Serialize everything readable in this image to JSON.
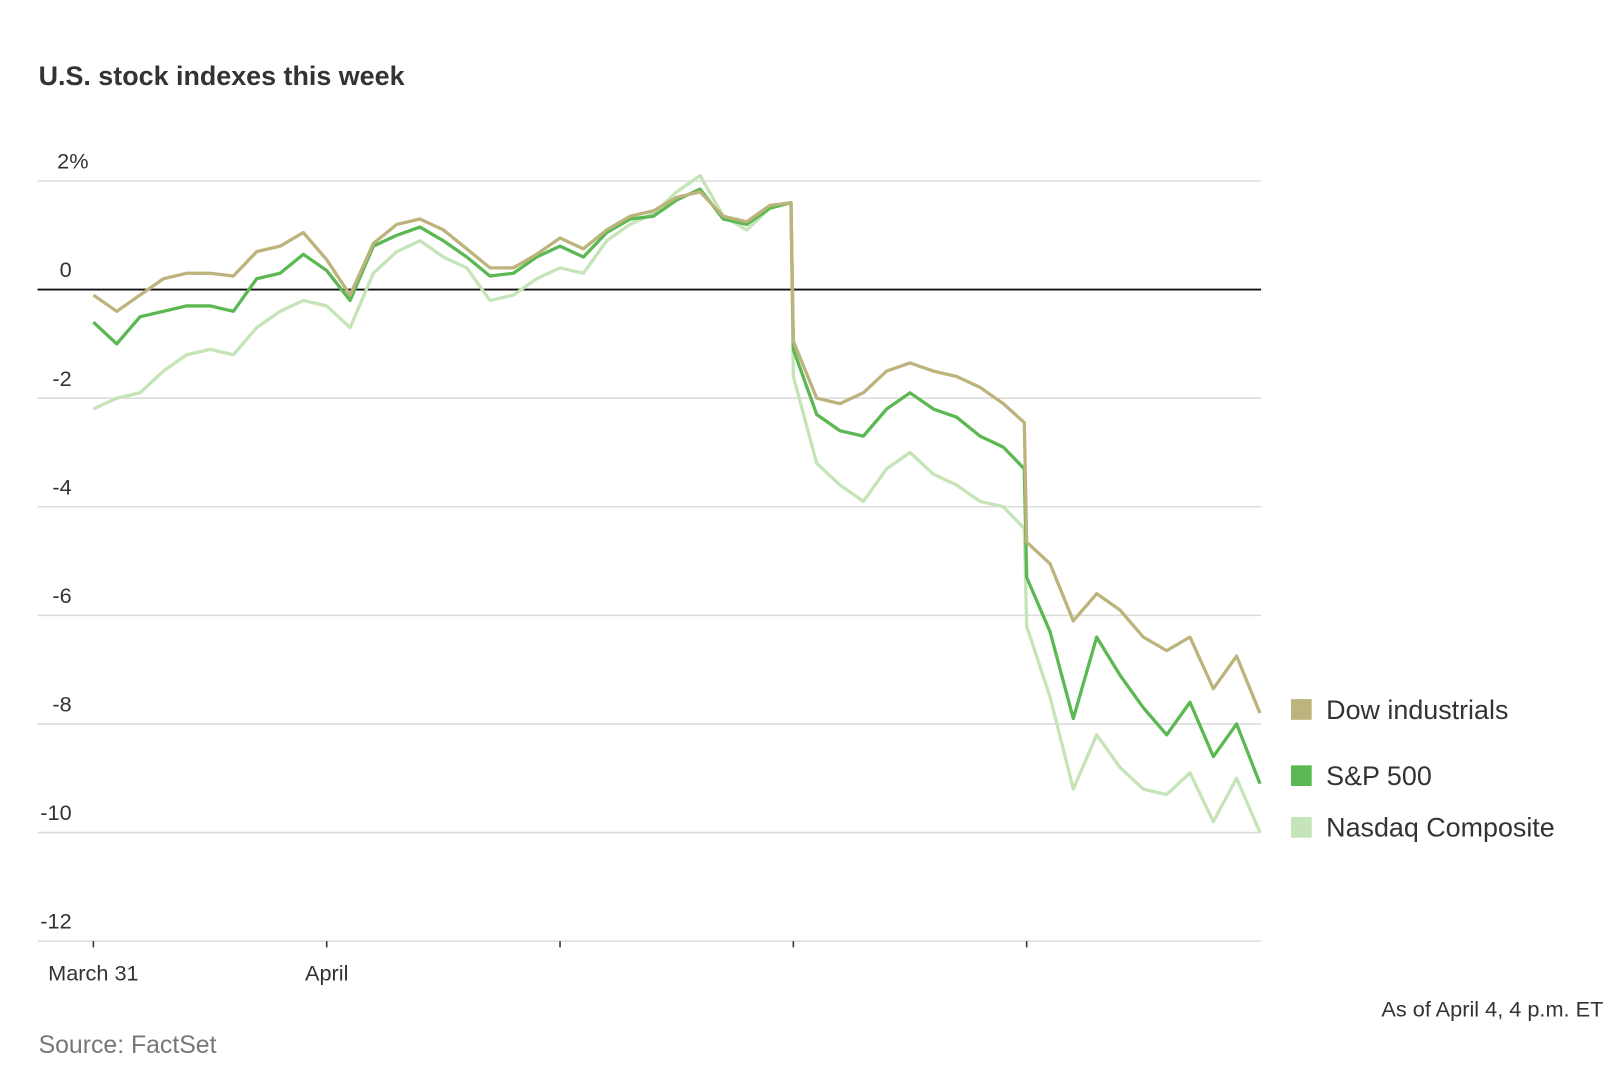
{
  "chart_data": {
    "type": "line",
    "title": "U.S. stock indexes this week",
    "source": "Source: FactSet",
    "footnote": "As of April 4, 4 p.m. ET",
    "x": [
      0,
      0.1,
      0.2,
      0.3,
      0.4,
      0.5,
      0.6,
      0.7,
      0.8,
      0.9,
      1.0,
      1.1,
      1.2,
      1.3,
      1.4,
      1.5,
      1.6,
      1.7,
      1.8,
      1.9,
      2.0,
      2.1,
      2.2,
      2.3,
      2.4,
      2.5,
      2.6,
      2.7,
      2.8,
      2.9,
      2.99,
      3.0,
      3.1,
      3.2,
      3.3,
      3.4,
      3.5,
      3.6,
      3.7,
      3.8,
      3.9,
      3.99,
      4.0,
      4.1,
      4.2,
      4.3,
      4.4,
      4.5,
      4.6,
      4.7,
      4.8,
      4.9,
      5.0
    ],
    "xlim": [
      0,
      5
    ],
    "xticks": [
      0,
      1,
      2,
      3,
      4
    ],
    "xtick_labels": [
      "March 31",
      "April",
      null,
      null,
      null
    ],
    "ylim": [
      -12,
      2
    ],
    "yticks": [
      {
        "value": 2,
        "label": "2%"
      },
      0,
      -2,
      -4,
      -6,
      -8,
      -10,
      -12
    ],
    "grid": true,
    "legend": "right",
    "series": [
      {
        "name": "Dow industrials",
        "color": "#bcb47c",
        "values": [
          -0.1,
          -0.4,
          -0.1,
          0.2,
          0.3,
          0.3,
          0.25,
          0.7,
          0.8,
          1.05,
          0.55,
          -0.1,
          0.85,
          1.2,
          1.3,
          1.1,
          0.75,
          0.4,
          0.4,
          0.65,
          0.95,
          0.75,
          1.1,
          1.35,
          1.45,
          1.7,
          1.8,
          1.35,
          1.25,
          1.55,
          1.6,
          -0.95,
          -2.0,
          -2.1,
          -1.9,
          -1.5,
          -1.35,
          -1.5,
          -1.6,
          -1.8,
          -2.1,
          -2.45,
          -4.65,
          -5.05,
          -6.1,
          -5.6,
          -5.9,
          -6.4,
          -6.65,
          -6.4,
          -7.35,
          -6.75,
          -7.8
        ]
      },
      {
        "name": "S&P 500",
        "color": "#5cb852",
        "values": [
          -0.6,
          -1.0,
          -0.5,
          -0.4,
          -0.3,
          -0.3,
          -0.4,
          0.2,
          0.3,
          0.65,
          0.35,
          -0.2,
          0.8,
          1.0,
          1.15,
          0.9,
          0.6,
          0.25,
          0.3,
          0.6,
          0.8,
          0.6,
          1.05,
          1.3,
          1.35,
          1.65,
          1.85,
          1.3,
          1.2,
          1.5,
          1.6,
          -1.1,
          -2.3,
          -2.6,
          -2.7,
          -2.2,
          -1.9,
          -2.2,
          -2.35,
          -2.7,
          -2.9,
          -3.3,
          -5.3,
          -6.3,
          -7.9,
          -6.4,
          -7.1,
          -7.7,
          -8.2,
          -7.6,
          -8.6,
          -8.0,
          -9.1
        ]
      },
      {
        "name": "Nasdaq Composite",
        "color": "#c5e4b8",
        "values": [
          -2.2,
          -2.0,
          -1.9,
          -1.5,
          -1.2,
          -1.1,
          -1.2,
          -0.7,
          -0.4,
          -0.2,
          -0.3,
          -0.7,
          0.3,
          0.7,
          0.9,
          0.6,
          0.4,
          -0.2,
          -0.1,
          0.2,
          0.4,
          0.3,
          0.9,
          1.2,
          1.4,
          1.8,
          2.1,
          1.35,
          1.1,
          1.5,
          1.6,
          -1.6,
          -3.2,
          -3.6,
          -3.9,
          -3.3,
          -3.0,
          -3.4,
          -3.6,
          -3.9,
          -4.0,
          -4.4,
          -6.2,
          -7.5,
          -9.2,
          -8.2,
          -8.8,
          -9.2,
          -9.3,
          -8.9,
          -9.8,
          -9.0,
          -10.0
        ]
      }
    ]
  }
}
